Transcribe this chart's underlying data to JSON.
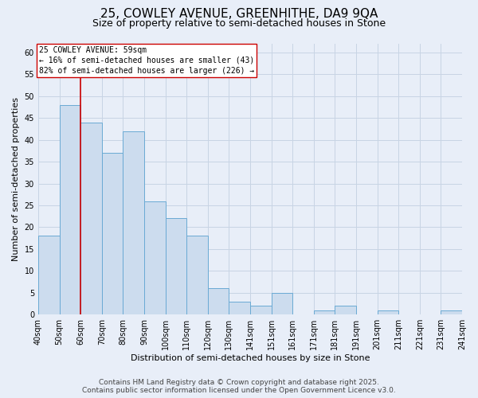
{
  "title": "25, COWLEY AVENUE, GREENHITHE, DA9 9QA",
  "subtitle": "Size of property relative to semi-detached houses in Stone",
  "xlabel": "Distribution of semi-detached houses by size in Stone",
  "ylabel": "Number of semi-detached properties",
  "bar_values": [
    18,
    48,
    44,
    37,
    42,
    26,
    22,
    18,
    6,
    3,
    2,
    5,
    0,
    1,
    2,
    0,
    1,
    0,
    0,
    1
  ],
  "bin_labels": [
    "40sqm",
    "50sqm",
    "60sqm",
    "70sqm",
    "80sqm",
    "90sqm",
    "100sqm",
    "110sqm",
    "120sqm",
    "130sqm",
    "141sqm",
    "151sqm",
    "161sqm",
    "171sqm",
    "181sqm",
    "191sqm",
    "201sqm",
    "211sqm",
    "221sqm",
    "231sqm",
    "241sqm"
  ],
  "bar_color": "#ccdcee",
  "bar_edge_color": "#6aaad4",
  "marker_label": "25 COWLEY AVENUE: 59sqm",
  "marker_color": "#cc0000",
  "annotation_line1": "← 16% of semi-detached houses are smaller (43)",
  "annotation_line2": "82% of semi-detached houses are larger (226) →",
  "ylim": [
    0,
    62
  ],
  "yticks": [
    0,
    5,
    10,
    15,
    20,
    25,
    30,
    35,
    40,
    45,
    50,
    55,
    60
  ],
  "grid_color": "#c8d4e4",
  "background_color": "#e8eef8",
  "footer_line1": "Contains HM Land Registry data © Crown copyright and database right 2025.",
  "footer_line2": "Contains public sector information licensed under the Open Government Licence v3.0.",
  "title_fontsize": 11,
  "subtitle_fontsize": 9,
  "axis_label_fontsize": 8,
  "tick_fontsize": 7,
  "footer_fontsize": 6.5
}
